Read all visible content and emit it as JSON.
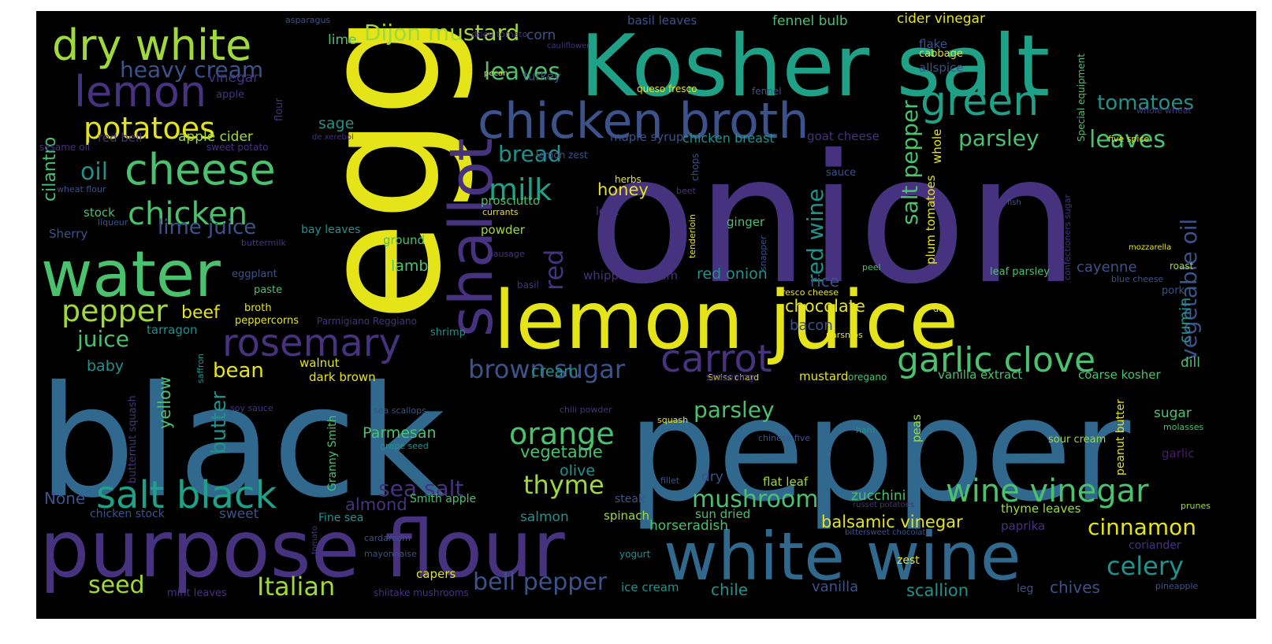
{
  "cloud": {
    "background": "#000000",
    "palette": {
      "yellow": "#e5e419",
      "lime": "#9fda3a",
      "green": "#4ac16d",
      "teal": "#1fa187",
      "tealblue": "#21918c",
      "blue": "#31688e",
      "slate": "#3b528b",
      "indigo": "#46327e",
      "purple": "#481b6d",
      "dark": "#440154"
    },
    "words": [
      {
        "text": "onion",
        "c": "indigo"
      },
      {
        "text": "egg",
        "c": "yellow"
      },
      {
        "text": "black",
        "c": "blue"
      },
      {
        "text": "pepper",
        "c": "blue"
      },
      {
        "text": "Kosher salt",
        "c": "teal"
      },
      {
        "text": "lemon juice",
        "c": "yellow"
      },
      {
        "text": "purpose flour",
        "c": "indigo"
      },
      {
        "text": "white wine",
        "c": "blue"
      },
      {
        "text": "shallot",
        "c": "indigo"
      },
      {
        "text": "water",
        "c": "green"
      },
      {
        "text": "chicken broth",
        "c": "slate"
      },
      {
        "text": "dry white",
        "c": "lime"
      },
      {
        "text": "cheese",
        "c": "green"
      },
      {
        "text": "lemon",
        "c": "indigo"
      },
      {
        "text": "green",
        "c": "teal"
      },
      {
        "text": "salt black",
        "c": "teal"
      },
      {
        "text": "rosemary",
        "c": "indigo"
      },
      {
        "text": "carrot",
        "c": "indigo"
      },
      {
        "text": "garlic clove",
        "c": "green"
      },
      {
        "text": "wine vinegar",
        "c": "green"
      },
      {
        "text": "chicken",
        "c": "green"
      },
      {
        "text": "potatoes",
        "c": "yellow"
      },
      {
        "text": "pepper",
        "c": "lime"
      },
      {
        "text": "orange",
        "c": "green"
      },
      {
        "text": "milk",
        "c": "teal"
      },
      {
        "text": "brown sugar",
        "c": "slate"
      },
      {
        "text": "Dijon mustard",
        "c": "lime"
      },
      {
        "text": "heavy cream",
        "c": "slate"
      },
      {
        "text": "Italian",
        "c": "lime"
      },
      {
        "text": "bell pepper",
        "c": "slate"
      },
      {
        "text": "mushroom",
        "c": "green"
      },
      {
        "text": "celery",
        "c": "tealblue"
      },
      {
        "text": "seed",
        "c": "lime"
      },
      {
        "text": "thyme",
        "c": "lime"
      },
      {
        "text": "leaves",
        "c": "green"
      },
      {
        "text": "parsley",
        "c": "green"
      },
      {
        "text": "leaves",
        "c": "green"
      },
      {
        "text": "tomatoes",
        "c": "tealblue"
      },
      {
        "text": "cinnamon",
        "c": "yellow"
      },
      {
        "text": "oil",
        "c": "tealblue"
      },
      {
        "text": "bread",
        "c": "tealblue"
      },
      {
        "text": "sea salt",
        "c": "indigo"
      },
      {
        "text": "salt pepper",
        "c": "green"
      },
      {
        "text": "red wine",
        "c": "tealblue"
      },
      {
        "text": "vegetable oil",
        "c": "slate"
      },
      {
        "text": "red",
        "c": "indigo"
      },
      {
        "text": "parsley",
        "c": "green"
      },
      {
        "text": "juice",
        "c": "green"
      },
      {
        "text": "lime juice",
        "c": "slate"
      },
      {
        "text": "balsamic vinegar",
        "c": "yellow"
      },
      {
        "text": "bean",
        "c": "yellow"
      },
      {
        "text": "butter",
        "c": "tealblue"
      },
      {
        "text": "beef",
        "c": "yellow"
      },
      {
        "text": "vegetable",
        "c": "green"
      },
      {
        "text": "honey",
        "c": "yellow"
      },
      {
        "text": "chocolate",
        "c": "yellow"
      },
      {
        "text": "scallion",
        "c": "tealblue"
      },
      {
        "text": "chives",
        "c": "slate"
      },
      {
        "text": "vanilla",
        "c": "slate"
      },
      {
        "text": "chile",
        "c": "tealblue"
      },
      {
        "text": "cilantro",
        "c": "green"
      },
      {
        "text": "Parmesan",
        "c": "green"
      },
      {
        "text": "almond",
        "c": "indigo"
      },
      {
        "text": "None",
        "c": "slate"
      },
      {
        "text": "baby",
        "c": "tealblue"
      },
      {
        "text": "yellow",
        "c": "green"
      },
      {
        "text": "olive",
        "c": "tealblue"
      },
      {
        "text": "lamb",
        "c": "green"
      },
      {
        "text": "cream",
        "c": "tealblue"
      },
      {
        "text": "red onion",
        "c": "tealblue"
      },
      {
        "text": "rice",
        "c": "slate"
      },
      {
        "text": "bacon",
        "c": "slate"
      },
      {
        "text": "cumin",
        "c": "tealblue"
      },
      {
        "text": "cayenne",
        "c": "slate"
      },
      {
        "text": "sugar",
        "c": "green"
      },
      {
        "text": "dill",
        "c": "green"
      },
      {
        "text": "salmon",
        "c": "tealblue"
      },
      {
        "text": "zucchini",
        "c": "green"
      },
      {
        "text": "corn",
        "c": "slate"
      },
      {
        "text": "sage",
        "c": "tealblue"
      },
      {
        "text": "vinegar",
        "c": "indigo"
      },
      {
        "text": "apple cider",
        "c": "lime"
      },
      {
        "text": "stock",
        "c": "green"
      },
      {
        "text": "Sherry",
        "c": "slate"
      },
      {
        "text": "lime",
        "c": "green"
      },
      {
        "text": "fennel bulb",
        "c": "green"
      },
      {
        "text": "cider vinegar",
        "c": "yellow"
      },
      {
        "text": "basil leaves",
        "c": "slate"
      },
      {
        "text": "turkey",
        "c": "slate"
      },
      {
        "text": "maple syrup",
        "c": "slate"
      },
      {
        "text": "chicken breast",
        "c": "tealblue"
      },
      {
        "text": "goat cheese",
        "c": "indigo"
      },
      {
        "text": "whole",
        "c": "yellow"
      },
      {
        "text": "plum tomatoes",
        "c": "yellow"
      },
      {
        "text": "flake",
        "c": "slate"
      },
      {
        "text": "cabbage",
        "c": "yellow"
      },
      {
        "text": "allspice",
        "c": "slate"
      },
      {
        "text": "garlic",
        "c": "purple"
      },
      {
        "text": "paprika",
        "c": "indigo"
      },
      {
        "text": "coriander",
        "c": "indigo"
      },
      {
        "text": "thyme leaves",
        "c": "lime"
      },
      {
        "text": "sour cream",
        "c": "lime"
      },
      {
        "text": "peanut butter",
        "c": "yellow"
      },
      {
        "text": "peas",
        "c": "lime"
      },
      {
        "text": "coarse kosher",
        "c": "green"
      },
      {
        "text": "vanilla extract",
        "c": "green"
      },
      {
        "text": "horseradish",
        "c": "green"
      },
      {
        "text": "sun dried",
        "c": "green"
      },
      {
        "text": "spinach",
        "c": "lime"
      },
      {
        "text": "steak",
        "c": "slate"
      },
      {
        "text": "flat leaf",
        "c": "lime"
      },
      {
        "text": "dry",
        "c": "slate"
      },
      {
        "text": "sweet",
        "c": "slate"
      },
      {
        "text": "chicken stock",
        "c": "slate"
      },
      {
        "text": "Fine sea",
        "c": "tealblue"
      },
      {
        "text": "capers",
        "c": "yellow"
      },
      {
        "text": "ice cream",
        "c": "tealblue"
      },
      {
        "text": "zest",
        "c": "yellow"
      },
      {
        "text": "leg",
        "c": "slate"
      },
      {
        "text": "yogurt",
        "c": "tealblue"
      },
      {
        "text": "mustard",
        "c": "yellow"
      },
      {
        "text": "walnut",
        "c": "yellow"
      },
      {
        "text": "dark brown",
        "c": "yellow"
      },
      {
        "text": "tarragon",
        "c": "tealblue"
      },
      {
        "text": "broth",
        "c": "yellow"
      },
      {
        "text": "peppercorns",
        "c": "yellow"
      },
      {
        "text": "paste",
        "c": "green"
      },
      {
        "text": "eggplant",
        "c": "slate"
      },
      {
        "text": "bay leaves",
        "c": "tealblue"
      },
      {
        "text": "ground",
        "c": "green"
      },
      {
        "text": "powder",
        "c": "lime"
      },
      {
        "text": "prosciutto",
        "c": "green"
      },
      {
        "text": "ginger",
        "c": "green"
      },
      {
        "text": "shrimp",
        "c": "tealblue"
      },
      {
        "text": "whipping cream",
        "c": "indigo"
      },
      {
        "text": "leaf parsley",
        "c": "green"
      },
      {
        "text": "pork",
        "c": "slate"
      },
      {
        "text": "apple",
        "c": "indigo"
      },
      {
        "text": "red bell",
        "c": "indigo"
      },
      {
        "text": "sweet potato",
        "c": "indigo"
      },
      {
        "text": "sesame oil",
        "c": "indigo"
      },
      {
        "text": "wheat flour",
        "c": "slate"
      },
      {
        "text": "liqueur",
        "c": "slate"
      },
      {
        "text": "buttermilk",
        "c": "indigo"
      },
      {
        "text": "Parmigiano Reggiano",
        "c": "indigo"
      },
      {
        "text": "Granny Smith",
        "c": "green"
      },
      {
        "text": "Smith apple",
        "c": "green"
      },
      {
        "text": "butternut squash",
        "c": "indigo"
      },
      {
        "text": "saffron",
        "c": "tealblue"
      },
      {
        "text": "soy sauce",
        "c": "indigo"
      },
      {
        "text": "sea scallops",
        "c": "slate"
      },
      {
        "text": "grape seed",
        "c": "tealblue"
      },
      {
        "text": "mint leaves",
        "c": "indigo"
      },
      {
        "text": "shiitake mushrooms",
        "c": "indigo"
      },
      {
        "text": "mayonnaise",
        "c": "slate"
      },
      {
        "text": "cardamom",
        "c": "slate"
      },
      {
        "text": "tomato",
        "c": "indigo"
      },
      {
        "text": "asparagus",
        "c": "slate"
      },
      {
        "text": "dried tomato",
        "c": "indigo"
      },
      {
        "text": "cauliflower",
        "c": "indigo"
      },
      {
        "text": "pecan",
        "c": "yellow"
      },
      {
        "text": "queso fresco",
        "c": "yellow"
      },
      {
        "text": "fennel",
        "c": "slate"
      },
      {
        "text": "lemon zest",
        "c": "slate"
      },
      {
        "text": "herbs",
        "c": "yellow"
      },
      {
        "text": "currants",
        "c": "yellow"
      },
      {
        "text": "leek",
        "c": "indigo"
      },
      {
        "text": "beet",
        "c": "indigo"
      },
      {
        "text": "chops",
        "c": "slate"
      },
      {
        "text": "tenderloin",
        "c": "yellow"
      },
      {
        "text": "sauce",
        "c": "slate"
      },
      {
        "text": "snapper",
        "c": "slate"
      },
      {
        "text": "basil",
        "c": "indigo"
      },
      {
        "text": "grape",
        "c": "yellow"
      },
      {
        "text": "sausage",
        "c": "indigo"
      },
      {
        "text": "de",
        "c": "yellow"
      },
      {
        "text": "fresco cheese",
        "c": "yellow"
      },
      {
        "text": "peel",
        "c": "green"
      },
      {
        "text": "parsnips",
        "c": "yellow"
      },
      {
        "text": "oregano",
        "c": "green"
      },
      {
        "text": "Swiss chard",
        "c": "yellow"
      },
      {
        "text": "seasoning",
        "c": "indigo"
      },
      {
        "text": "chili powder",
        "c": "indigo"
      },
      {
        "text": "squash",
        "c": "yellow"
      },
      {
        "text": "fillet",
        "c": "slate"
      },
      {
        "text": "ham",
        "c": "tealblue"
      },
      {
        "text": "chinese five",
        "c": "slate"
      },
      {
        "text": "bittersweet chocolate",
        "c": "slate"
      },
      {
        "text": "russet potatoes",
        "c": "indigo"
      },
      {
        "text": "prunes",
        "c": "lime"
      },
      {
        "text": "pineapple",
        "c": "slate"
      },
      {
        "text": "molasses",
        "c": "green"
      },
      {
        "text": "blue cheese",
        "c": "slate"
      },
      {
        "text": "roast",
        "c": "lime"
      },
      {
        "text": "mozzarella",
        "c": "yellow"
      },
      {
        "text": "fish",
        "c": "slate"
      },
      {
        "text": "confectioners sugar",
        "c": "indigo"
      },
      {
        "text": "Special equipment",
        "c": "green"
      },
      {
        "text": "five spice",
        "c": "yellow"
      },
      {
        "text": "whole wheat",
        "c": "indigo"
      },
      {
        "text": "de xerebol",
        "c": "indigo"
      },
      {
        "text": "flour",
        "c": "indigo"
      }
    ]
  }
}
